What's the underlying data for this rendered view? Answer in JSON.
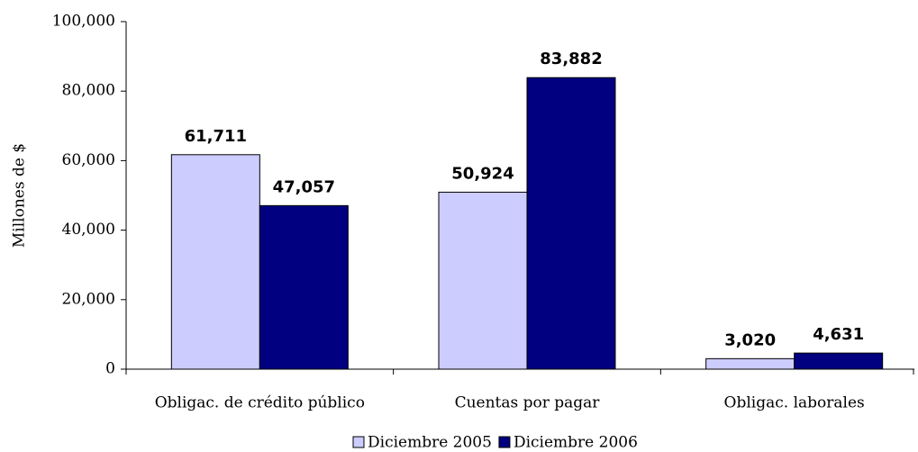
{
  "chart_data": {
    "type": "bar",
    "y_label": "Millones de $",
    "categories": [
      "Obligac. de crédito público",
      "Cuentas por pagar",
      "Obligac. laborales"
    ],
    "series": [
      {
        "name": "Diciembre 2005",
        "color": "#ccccff",
        "values": [
          61711,
          50924,
          3020
        ],
        "value_labels": [
          "61,711",
          "50,924",
          "3,020"
        ]
      },
      {
        "name": "Diciembre 2006",
        "color": "#000080",
        "values": [
          47057,
          83882,
          4631
        ],
        "value_labels": [
          "47,057",
          "83,882",
          "4,631"
        ]
      }
    ],
    "ylim": [
      0,
      100000
    ],
    "yticks": [
      0,
      {
        "value": 20000,
        "label": "20,000"
      },
      {
        "value": 40000,
        "label": "40,000"
      },
      {
        "value": 60000,
        "label": "60,000"
      },
      {
        "value": 80000,
        "label": "80,000"
      },
      {
        "value": 100000,
        "label": "100,000"
      }
    ],
    "grid": false
  }
}
